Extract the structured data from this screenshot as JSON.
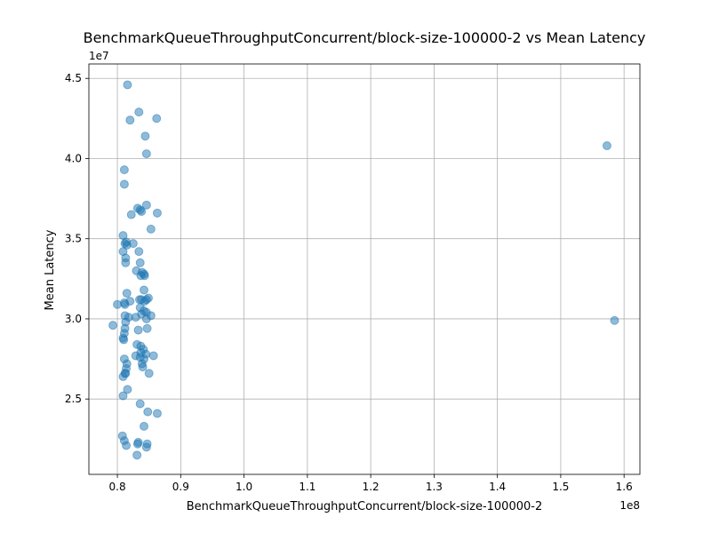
{
  "chart_data": {
    "type": "scatter",
    "title": "BenchmarkQueueThroughputConcurrent/block-size-100000-2 vs Mean Latency",
    "xlabel": "BenchmarkQueueThroughputConcurrent/block-size-100000-2",
    "ylabel": "Mean Latency",
    "x_offset_label": "1e8",
    "y_offset_label": "1e7",
    "xlim": [
      75500000,
      162500000
    ],
    "ylim": [
      20300000,
      45900000
    ],
    "x_ticks": [
      {
        "value": 80000000,
        "label": "0.8"
      },
      {
        "value": 90000000,
        "label": "0.9"
      },
      {
        "value": 100000000,
        "label": "1.0"
      },
      {
        "value": 110000000,
        "label": "1.1"
      },
      {
        "value": 120000000,
        "label": "1.2"
      },
      {
        "value": 130000000,
        "label": "1.3"
      },
      {
        "value": 140000000,
        "label": "1.4"
      },
      {
        "value": 150000000,
        "label": "1.5"
      },
      {
        "value": 160000000,
        "label": "1.6"
      }
    ],
    "y_ticks": [
      {
        "value": 25000000,
        "label": "2.5"
      },
      {
        "value": 30000000,
        "label": "3.0"
      },
      {
        "value": 35000000,
        "label": "3.5"
      },
      {
        "value": 40000000,
        "label": "4.0"
      },
      {
        "value": 45000000,
        "label": "4.5"
      }
    ],
    "grid": true,
    "marker_color": "#1f77b4",
    "marker_alpha": 0.5,
    "points": [
      [
        81600000,
        44600000
      ],
      [
        83400000,
        42900000
      ],
      [
        82000000,
        42400000
      ],
      [
        86200000,
        42500000
      ],
      [
        84400000,
        41400000
      ],
      [
        84600000,
        40300000
      ],
      [
        157300000,
        40800000
      ],
      [
        81100000,
        39300000
      ],
      [
        81100000,
        38400000
      ],
      [
        84600000,
        37100000
      ],
      [
        83200000,
        36900000
      ],
      [
        83600000,
        36800000
      ],
      [
        83800000,
        36700000
      ],
      [
        82200000,
        36500000
      ],
      [
        86300000,
        36600000
      ],
      [
        85300000,
        35600000
      ],
      [
        80900000,
        35200000
      ],
      [
        81400000,
        34800000
      ],
      [
        81200000,
        34700000
      ],
      [
        82500000,
        34700000
      ],
      [
        81500000,
        34600000
      ],
      [
        80900000,
        34200000
      ],
      [
        83400000,
        34200000
      ],
      [
        81300000,
        33800000
      ],
      [
        81300000,
        33500000
      ],
      [
        83600000,
        33500000
      ],
      [
        83000000,
        33000000
      ],
      [
        83900000,
        32900000
      ],
      [
        84200000,
        32800000
      ],
      [
        83700000,
        32700000
      ],
      [
        84300000,
        32700000
      ],
      [
        84200000,
        31800000
      ],
      [
        81500000,
        31600000
      ],
      [
        84900000,
        31300000
      ],
      [
        83500000,
        31200000
      ],
      [
        82000000,
        31100000
      ],
      [
        84600000,
        31200000
      ],
      [
        83800000,
        31200000
      ],
      [
        84300000,
        31100000
      ],
      [
        81100000,
        31000000
      ],
      [
        81200000,
        30900000
      ],
      [
        80000000,
        30900000
      ],
      [
        83600000,
        30700000
      ],
      [
        84200000,
        30500000
      ],
      [
        83800000,
        30300000
      ],
      [
        84600000,
        30400000
      ],
      [
        85300000,
        30200000
      ],
      [
        82900000,
        30100000
      ],
      [
        81200000,
        30200000
      ],
      [
        81800000,
        30100000
      ],
      [
        84600000,
        30000000
      ],
      [
        81300000,
        29800000
      ],
      [
        79300000,
        29600000
      ],
      [
        158500000,
        29900000
      ],
      [
        81200000,
        29400000
      ],
      [
        84700000,
        29400000
      ],
      [
        83300000,
        29300000
      ],
      [
        81100000,
        29100000
      ],
      [
        80900000,
        28800000
      ],
      [
        81000000,
        28700000
      ],
      [
        83100000,
        28400000
      ],
      [
        83700000,
        28300000
      ],
      [
        84100000,
        28100000
      ],
      [
        83700000,
        27900000
      ],
      [
        84500000,
        27800000
      ],
      [
        85700000,
        27700000
      ],
      [
        82900000,
        27700000
      ],
      [
        83600000,
        27600000
      ],
      [
        84200000,
        27500000
      ],
      [
        81100000,
        27500000
      ],
      [
        83900000,
        27200000
      ],
      [
        81500000,
        27200000
      ],
      [
        84000000,
        27000000
      ],
      [
        81400000,
        26900000
      ],
      [
        81300000,
        26600000
      ],
      [
        81200000,
        26600000
      ],
      [
        85000000,
        26600000
      ],
      [
        80900000,
        26400000
      ],
      [
        81600000,
        25600000
      ],
      [
        80900000,
        25200000
      ],
      [
        83600000,
        24700000
      ],
      [
        86300000,
        24100000
      ],
      [
        84800000,
        24200000
      ],
      [
        84200000,
        23300000
      ],
      [
        80800000,
        22700000
      ],
      [
        81100000,
        22400000
      ],
      [
        83200000,
        22200000
      ],
      [
        83300000,
        22300000
      ],
      [
        84700000,
        22200000
      ],
      [
        81400000,
        22100000
      ],
      [
        84600000,
        22000000
      ],
      [
        83100000,
        21500000
      ]
    ]
  }
}
